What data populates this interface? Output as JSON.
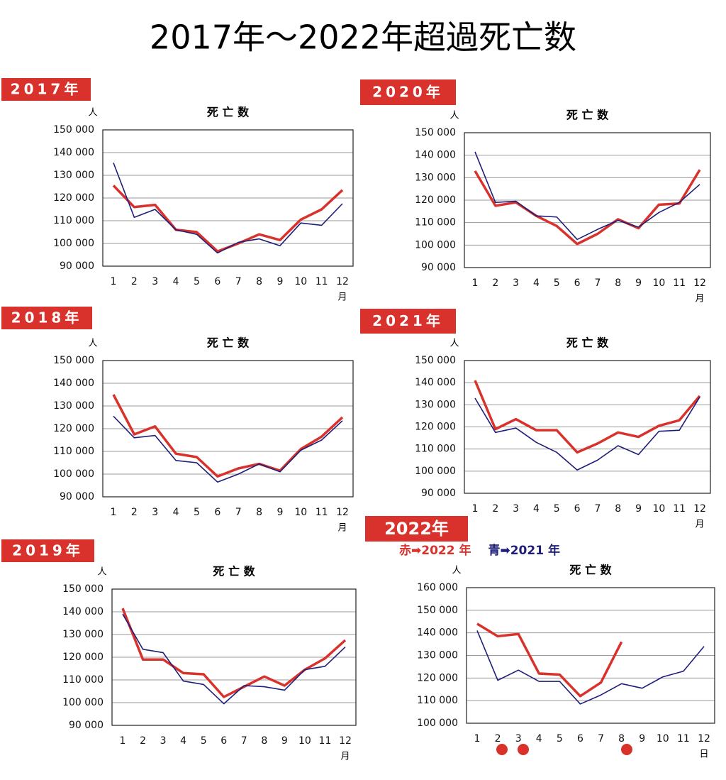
{
  "title": "2017年～2022年超過死亡数",
  "chart_data": [
    {
      "type": "line",
      "panel_label": "2017年",
      "title": "死 亡 数",
      "y_unit": "人",
      "x_unit": "月",
      "categories": [
        "1",
        "2",
        "3",
        "4",
        "5",
        "6",
        "7",
        "8",
        "9",
        "10",
        "11",
        "12"
      ],
      "series": [
        {
          "color": "#d9312b",
          "values": [
            125500,
            116000,
            117000,
            106000,
            105000,
            96500,
            100000,
            104000,
            101500,
            110500,
            115000,
            123500
          ]
        },
        {
          "color": "#1f1f7a",
          "values": [
            135500,
            111500,
            115000,
            106000,
            104000,
            95800,
            100500,
            102000,
            99000,
            109000,
            108000,
            117500
          ]
        }
      ],
      "ylim": [
        90000,
        150000
      ],
      "grid": true,
      "yticks": [
        {
          "value": 90000,
          "label": "90 000"
        },
        {
          "value": 100000,
          "label": "100 000"
        },
        {
          "value": 110000,
          "label": "110 000"
        },
        {
          "value": 120000,
          "label": "120 000"
        },
        {
          "value": 130000,
          "label": "130 000"
        },
        {
          "value": 140000,
          "label": "140 000"
        },
        {
          "value": 150000,
          "label": "150 000"
        }
      ]
    },
    {
      "type": "line",
      "panel_label": "2020年",
      "title": "死 亡 数",
      "y_unit": "人",
      "x_unit": "月",
      "categories": [
        "1",
        "2",
        "3",
        "4",
        "5",
        "6",
        "7",
        "8",
        "9",
        "10",
        "11",
        "12"
      ],
      "series": [
        {
          "color": "#d9312b",
          "values": [
            133000,
            117500,
            119000,
            113000,
            108500,
            100500,
            105000,
            111500,
            107500,
            118000,
            118500,
            133500
          ]
        },
        {
          "color": "#1f1f7a",
          "values": [
            141500,
            119000,
            119500,
            113000,
            112500,
            102500,
            107000,
            111000,
            108000,
            114500,
            119000,
            127000
          ]
        }
      ],
      "ylim": [
        90000,
        150000
      ],
      "grid": true,
      "yticks": [
        {
          "value": 90000,
          "label": "90 000"
        },
        {
          "value": 100000,
          "label": "100 000"
        },
        {
          "value": 110000,
          "label": "110 000"
        },
        {
          "value": 120000,
          "label": "120 000"
        },
        {
          "value": 130000,
          "label": "130 000"
        },
        {
          "value": 140000,
          "label": "140 000"
        },
        {
          "value": 150000,
          "label": "150 000"
        }
      ]
    },
    {
      "type": "line",
      "panel_label": "2018年",
      "title": "死 亡 数",
      "y_unit": "人",
      "x_unit": "月",
      "categories": [
        "1",
        "2",
        "3",
        "4",
        "5",
        "6",
        "7",
        "8",
        "9",
        "10",
        "11",
        "12"
      ],
      "series": [
        {
          "color": "#d9312b",
          "values": [
            135000,
            117500,
            121000,
            109000,
            107500,
            99000,
            102500,
            104500,
            101500,
            111000,
            116500,
            125000
          ]
        },
        {
          "color": "#1f1f7a",
          "values": [
            125500,
            116000,
            117000,
            106000,
            105000,
            96500,
            100000,
            104500,
            101000,
            110500,
            115000,
            123500
          ]
        }
      ],
      "ylim": [
        90000,
        150000
      ],
      "grid": true,
      "yticks": [
        {
          "value": 90000,
          "label": "90 000"
        },
        {
          "value": 100000,
          "label": "100 000"
        },
        {
          "value": 110000,
          "label": "110 000"
        },
        {
          "value": 120000,
          "label": "120 000"
        },
        {
          "value": 130000,
          "label": "130 000"
        },
        {
          "value": 140000,
          "label": "140 000"
        },
        {
          "value": 150000,
          "label": "150 000"
        }
      ]
    },
    {
      "type": "line",
      "panel_label": "2021年",
      "title": "死 亡 数",
      "y_unit": "人",
      "x_unit": "月",
      "categories": [
        "1",
        "2",
        "3",
        "4",
        "5",
        "6",
        "7",
        "8",
        "9",
        "10",
        "11",
        "12"
      ],
      "series": [
        {
          "color": "#d9312b",
          "values": [
            141000,
            119000,
            123500,
            118500,
            118500,
            108500,
            112500,
            117500,
            115500,
            120500,
            123000,
            134000
          ]
        },
        {
          "color": "#1f1f7a",
          "values": [
            133000,
            117500,
            119500,
            113000,
            108500,
            100500,
            105000,
            111500,
            107500,
            118000,
            118500,
            133500
          ]
        }
      ],
      "ylim": [
        90000,
        150000
      ],
      "grid": true,
      "yticks": [
        {
          "value": 90000,
          "label": "90 000"
        },
        {
          "value": 100000,
          "label": "100 000"
        },
        {
          "value": 110000,
          "label": "110 000"
        },
        {
          "value": 120000,
          "label": "120 000"
        },
        {
          "value": 130000,
          "label": "130 000"
        },
        {
          "value": 140000,
          "label": "140 000"
        },
        {
          "value": 150000,
          "label": "150 000"
        }
      ]
    },
    {
      "type": "line",
      "panel_label": "2019年",
      "title": "死 亡 数",
      "y_unit": "人",
      "x_unit": "月",
      "categories": [
        "1",
        "2",
        "3",
        "4",
        "5",
        "6",
        "7",
        "8",
        "9",
        "10",
        "11",
        "12"
      ],
      "series": [
        {
          "color": "#d9312b",
          "values": [
            141500,
            119000,
            119000,
            113000,
            112500,
            102500,
            107000,
            111500,
            107500,
            114500,
            119500,
            127500
          ]
        },
        {
          "color": "#1f1f7a",
          "values": [
            139000,
            123500,
            122000,
            109500,
            108000,
            99500,
            107500,
            107000,
            105500,
            114500,
            116000,
            124500
          ]
        }
      ],
      "ylim": [
        90000,
        150000
      ],
      "grid": true,
      "yticks": [
        {
          "value": 90000,
          "label": "90 000"
        },
        {
          "value": 100000,
          "label": "100 000"
        },
        {
          "value": 110000,
          "label": "110 000"
        },
        {
          "value": 120000,
          "label": "120 000"
        },
        {
          "value": 130000,
          "label": "130 000"
        },
        {
          "value": 140000,
          "label": "140 000"
        },
        {
          "value": 150000,
          "label": "150 000"
        }
      ]
    },
    {
      "type": "line",
      "panel_label": "2022年",
      "title": "死 亡 数",
      "y_unit": "人",
      "x_unit": "日",
      "categories": [
        "1",
        "2",
        "3",
        "4",
        "5",
        "6",
        "7",
        "8",
        "9",
        "10",
        "11",
        "12"
      ],
      "series": [
        {
          "name": "赤➡2022 年",
          "color": "#d9312b",
          "values": [
            144000,
            138500,
            139500,
            122000,
            121500,
            112000,
            118000,
            136000,
            null,
            null,
            null,
            null
          ]
        },
        {
          "name": "青➡2021 年",
          "color": "#1f1f7a",
          "values": [
            141000,
            119000,
            123500,
            118500,
            118500,
            108500,
            112500,
            117500,
            115500,
            120500,
            123000,
            134000
          ]
        }
      ],
      "ylim": [
        100000,
        160000
      ],
      "grid": true,
      "yticks": [
        {
          "value": 100000,
          "label": "100 000"
        },
        {
          "value": 110000,
          "label": "110 000"
        },
        {
          "value": 120000,
          "label": "120 000"
        },
        {
          "value": 130000,
          "label": "130 000"
        },
        {
          "value": 140000,
          "label": "140 000"
        },
        {
          "value": 150000,
          "label": "150 000"
        },
        {
          "value": 160000,
          "label": "160 000"
        }
      ]
    }
  ]
}
